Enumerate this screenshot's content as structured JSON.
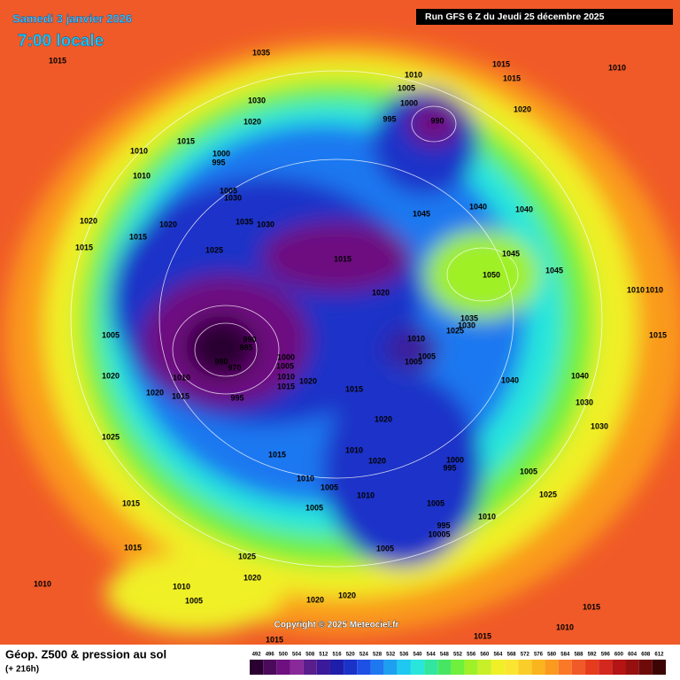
{
  "header": {
    "date": "Samedi 3 janvier 2026",
    "time": "7:00 locale",
    "run": "Run GFS 6 Z du Jeudi 25 décembre 2025"
  },
  "copyright": "Copyright © 2025 Meteociel.fr",
  "footer": {
    "title": "Géop. Z500 & pression au sol",
    "lead": "(+ 216h)"
  },
  "scale": {
    "values": [
      492,
      496,
      500,
      504,
      508,
      512,
      516,
      520,
      524,
      528,
      532,
      536,
      540,
      544,
      548,
      552,
      556,
      560,
      564,
      568,
      572,
      576,
      580,
      584,
      588,
      592,
      596,
      600,
      604,
      608,
      612
    ],
    "colors": [
      "#2a0030",
      "#4b0a5a",
      "#6e1080",
      "#8a2a9a",
      "#5a1e8c",
      "#3a1a9a",
      "#1e1eaa",
      "#1a32c8",
      "#1e50e6",
      "#1e78f0",
      "#1ea0f0",
      "#1ec8f0",
      "#28e6dc",
      "#32e6a0",
      "#46e664",
      "#6ef03c",
      "#a0f028",
      "#c8f028",
      "#f0f028",
      "#fae632",
      "#facd28",
      "#fab41e",
      "#fa9a1e",
      "#fa7828",
      "#f05a28",
      "#e63c1e",
      "#d2281e",
      "#b41414",
      "#961010",
      "#6e0a0a",
      "#3c0505"
    ]
  },
  "isobar_labels": [
    "1015",
    "1035",
    "1030",
    "1020",
    "1015",
    "1010",
    "1000",
    "995",
    "1010",
    "1005",
    "1030",
    "1035",
    "1030",
    "1020",
    "1020",
    "1015",
    "1015",
    "1025",
    "1015",
    "1020",
    "1010",
    "1005",
    "1000",
    "995",
    "990",
    "1015",
    "1015",
    "1010",
    "1020",
    "1045",
    "1040",
    "1040",
    "1045",
    "1050",
    "1045",
    "1010",
    "1010",
    "1035",
    "1030",
    "1025",
    "1010",
    "1005",
    "1005",
    "1015",
    "1005",
    "990",
    "985",
    "980",
    "970",
    "1000",
    "1005",
    "1010",
    "1015",
    "1020",
    "1010",
    "1020",
    "1020",
    "1015",
    "995",
    "1015",
    "1040",
    "1040",
    "1030",
    "1030",
    "1020",
    "1025",
    "1015",
    "1010",
    "1020",
    "1000",
    "995",
    "1005",
    "1010",
    "1005",
    "1010",
    "1025",
    "1005",
    "1005",
    "1015",
    "1010",
    "995",
    "10005",
    "1015",
    "1005",
    "1025",
    "1020",
    "1010",
    "1005",
    "1010",
    "1020",
    "1020",
    "1015",
    "1015",
    "1015",
    "1010"
  ]
}
